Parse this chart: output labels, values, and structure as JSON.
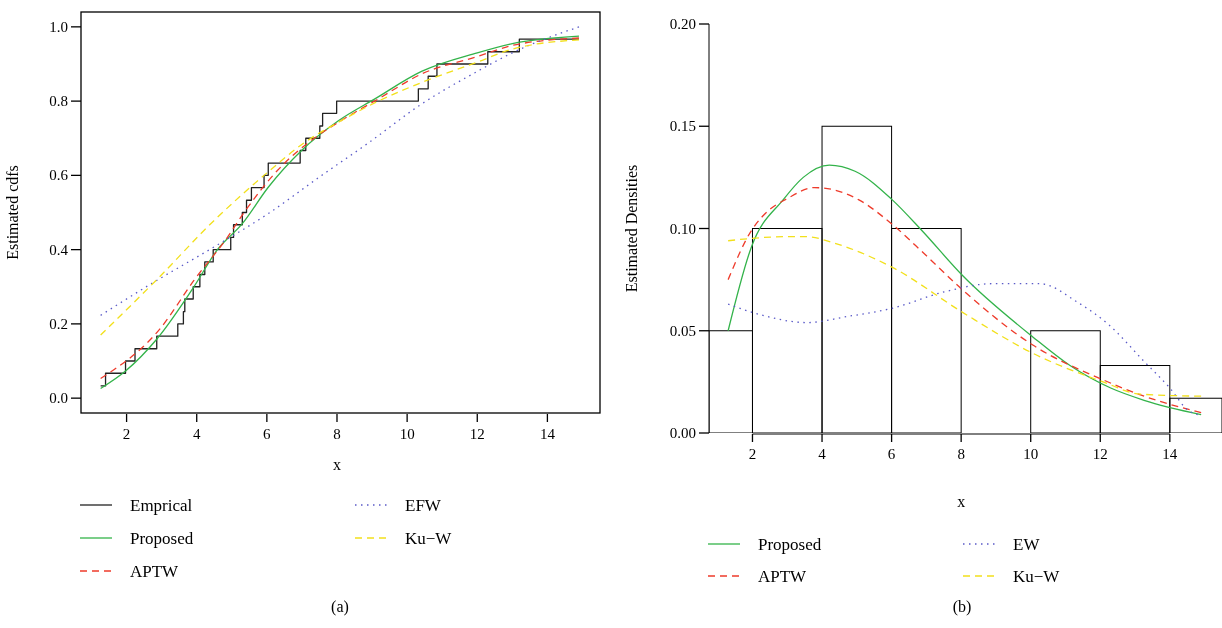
{
  "chart_data": [
    {
      "type": "line",
      "xlabel": "x",
      "ylabel": "Estimated cdfs",
      "xlim": [
        0.7,
        15.5
      ],
      "ylim": [
        -0.04,
        1.04
      ],
      "xticks": [
        2,
        4,
        6,
        8,
        10,
        12,
        14
      ],
      "yticks": [
        {
          "value": 0,
          "label": "0.0"
        },
        {
          "value": 0.2,
          "label": "0.2"
        },
        {
          "value": 0.4,
          "label": "0.4"
        },
        {
          "value": 0.6,
          "label": "0.6"
        },
        {
          "value": 0.8,
          "label": "0.8"
        },
        {
          "value": 1,
          "label": "1.0"
        }
      ],
      "legend": "bottom",
      "marker": "none",
      "annotations": [
        "(a)"
      ],
      "series": [
        {
          "name": "Emprical",
          "type": "step",
          "color": "#222222",
          "line_style": "solid",
          "x": [
            1.26,
            1.4,
            1.97,
            2.24,
            2.86,
            3.46,
            3.62,
            3.66,
            3.9,
            4.09,
            4.23,
            4.47,
            4.97,
            5.05,
            5.3,
            5.42,
            5.56,
            5.92,
            6.04,
            6.95,
            7.11,
            7.51,
            7.59,
            7.99,
            10.32,
            10.6,
            10.85,
            12.3,
            13.2,
            14.9
          ],
          "values": [
            0.033,
            0.067,
            0.1,
            0.133,
            0.167,
            0.2,
            0.233,
            0.267,
            0.3,
            0.333,
            0.367,
            0.4,
            0.433,
            0.467,
            0.5,
            0.533,
            0.567,
            0.6,
            0.633,
            0.667,
            0.7,
            0.733,
            0.767,
            0.8,
            0.833,
            0.867,
            0.9,
            0.933,
            0.967,
            0.967
          ]
        },
        {
          "name": "Proposed",
          "type": "line",
          "color": "#33b34a",
          "line_style": "solid",
          "x": [
            1.26,
            1.97,
            2.87,
            3.92,
            4.59,
            5.3,
            6.04,
            6.99,
            8.04,
            9.08,
            10.41,
            12,
            13,
            14.9
          ],
          "values": [
            0.026,
            0.073,
            0.16,
            0.3,
            0.4,
            0.47,
            0.568,
            0.667,
            0.747,
            0.806,
            0.88,
            0.93,
            0.955,
            0.975
          ]
        },
        {
          "name": "APTW",
          "type": "line",
          "color": "#ee3b2b",
          "line_style": "dashed",
          "x": [
            1.26,
            2.98,
            3.92,
            4.88,
            5.35,
            6.3,
            7.35,
            8.04,
            9.18,
            10.41,
            12,
            13,
            14.9
          ],
          "values": [
            0.053,
            0.19,
            0.317,
            0.434,
            0.5,
            0.613,
            0.7,
            0.743,
            0.806,
            0.873,
            0.92,
            0.95,
            0.97
          ]
        },
        {
          "name": "EFW",
          "type": "line",
          "color": "#5a5ac8",
          "line_style": "dotted",
          "x": [
            1.26,
            2.7,
            4.49,
            6.04,
            7.49,
            8.92,
            10.41,
            12,
            13,
            14.9
          ],
          "values": [
            0.223,
            0.308,
            0.407,
            0.497,
            0.595,
            0.689,
            0.792,
            0.88,
            0.93,
            1.0
          ]
        },
        {
          "name": "Ku−W",
          "type": "line",
          "color": "#f2e01b",
          "line_style": "dashed",
          "x": [
            1.26,
            2.87,
            4.49,
            5.92,
            7.16,
            8.04,
            9.18,
            10.41,
            12,
            13,
            14.9
          ],
          "values": [
            0.17,
            0.32,
            0.478,
            0.6,
            0.694,
            0.743,
            0.8,
            0.85,
            0.905,
            0.94,
            0.965
          ]
        }
      ]
    },
    {
      "type": "histogram",
      "xlabel": "x",
      "ylabel": "Estimated Densities",
      "xlim": [
        0.75,
        15.5
      ],
      "ylim": [
        0,
        0.2
      ],
      "xticks": [
        2,
        4,
        6,
        8,
        10,
        12,
        14
      ],
      "yticks": [
        {
          "value": 0,
          "label": "0.00"
        },
        {
          "value": 0.05,
          "label": "0.05"
        },
        {
          "value": 0.1,
          "label": "0.10"
        },
        {
          "value": 0.15,
          "label": "0.15"
        },
        {
          "value": 0.2,
          "label": "0.20"
        }
      ],
      "legend": "bottom",
      "marker": "none",
      "annotations": [
        "(b)"
      ],
      "bins": [
        0.75,
        2,
        4,
        6,
        8,
        10,
        12,
        14,
        15.5
      ],
      "values": [
        0.05,
        0.1,
        0.15,
        0.1,
        0,
        0.05,
        0.033,
        0.017
      ],
      "series": [
        {
          "name": "Proposed",
          "type": "line",
          "color": "#33b34a",
          "line_style": "solid",
          "x": [
            1.3,
            1.97,
            2.88,
            3.46,
            4.21,
            4.95,
            6.02,
            6.87,
            8.04,
            10.06,
            11.13,
            12.3,
            13.26,
            14.9
          ],
          "values": [
            0.05,
            0.091,
            0.114,
            0.125,
            0.131,
            0.128,
            0.114,
            0.099,
            0.077,
            0.047,
            0.033,
            0.022,
            0.016,
            0.009
          ]
        },
        {
          "name": "APTW",
          "type": "line",
          "color": "#ee3b2b",
          "line_style": "dashed",
          "x": [
            1.3,
            1.97,
            2.29,
            3.04,
            3.78,
            4.32,
            5.06,
            6.02,
            6.98,
            8.04,
            10.06,
            12.08,
            13.26,
            14.9
          ],
          "values": [
            0.075,
            0.099,
            0.106,
            0.115,
            0.12,
            0.119,
            0.114,
            0.102,
            0.087,
            0.07,
            0.043,
            0.026,
            0.018,
            0.01
          ]
        },
        {
          "name": "EW",
          "type": "line",
          "color": "#5a5ac8",
          "line_style": "dotted",
          "x": [
            1.3,
            2.19,
            3.57,
            4.74,
            6.02,
            7.51,
            8.89,
            10.27,
            11.34,
            12.24,
            13.26,
            14.0,
            14.53,
            14.8
          ],
          "values": [
            0.063,
            0.058,
            0.054,
            0.057,
            0.061,
            0.069,
            0.073,
            0.073,
            0.064,
            0.053,
            0.035,
            0.022,
            0.011,
            0.009
          ]
        },
        {
          "name": "Ku−W",
          "type": "line",
          "color": "#f2e01b",
          "line_style": "dashed",
          "x": [
            1.3,
            1.87,
            2.93,
            3.57,
            4.32,
            6.02,
            8.04,
            10.06,
            12.08,
            13.15,
            14.9
          ],
          "values": [
            0.094,
            0.095,
            0.096,
            0.096,
            0.093,
            0.081,
            0.059,
            0.039,
            0.025,
            0.019,
            0.018
          ]
        }
      ]
    }
  ]
}
